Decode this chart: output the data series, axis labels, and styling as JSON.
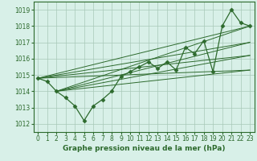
{
  "x": [
    0,
    1,
    2,
    3,
    4,
    5,
    6,
    7,
    8,
    9,
    10,
    11,
    12,
    13,
    14,
    15,
    16,
    17,
    18,
    19,
    20,
    21,
    22,
    23
  ],
  "y": [
    1014.8,
    1014.6,
    1014.0,
    1013.6,
    1013.1,
    1012.2,
    1013.1,
    1013.5,
    1014.0,
    1014.9,
    1015.2,
    1015.5,
    1015.8,
    1015.4,
    1015.8,
    1015.3,
    1016.7,
    1016.3,
    1017.1,
    1015.2,
    1018.0,
    1019.0,
    1018.2,
    1018.0
  ],
  "ylim": [
    1011.5,
    1019.5
  ],
  "xlim": [
    -0.5,
    23.5
  ],
  "yticks": [
    1012,
    1013,
    1014,
    1015,
    1016,
    1017,
    1018,
    1019
  ],
  "xticks": [
    0,
    1,
    2,
    3,
    4,
    5,
    6,
    7,
    8,
    9,
    10,
    11,
    12,
    13,
    14,
    15,
    16,
    17,
    18,
    19,
    20,
    21,
    22,
    23
  ],
  "xlabel": "Graphe pression niveau de la mer (hPa)",
  "line_color": "#2d6a2d",
  "bg_color": "#d8f0e8",
  "grid_color": "#a8c8b8",
  "marker": "D",
  "marker_size": 2.5,
  "linewidth": 0.9,
  "xlabel_fontsize": 6.5,
  "tick_fontsize": 5.5,
  "fan_lines": [
    {
      "x0": 0,
      "y0": 1014.8,
      "x1": 23,
      "y1": 1015.3
    },
    {
      "x0": 0,
      "y0": 1014.8,
      "x1": 23,
      "y1": 1016.2
    },
    {
      "x0": 0,
      "y0": 1014.8,
      "x1": 23,
      "y1": 1017.0
    },
    {
      "x0": 0,
      "y0": 1014.8,
      "x1": 23,
      "y1": 1018.0
    },
    {
      "x0": 2,
      "y0": 1014.0,
      "x1": 23,
      "y1": 1015.3
    },
    {
      "x0": 2,
      "y0": 1014.0,
      "x1": 23,
      "y1": 1016.2
    },
    {
      "x0": 2,
      "y0": 1014.0,
      "x1": 23,
      "y1": 1017.0
    },
    {
      "x0": 2,
      "y0": 1014.0,
      "x1": 23,
      "y1": 1018.0
    }
  ]
}
